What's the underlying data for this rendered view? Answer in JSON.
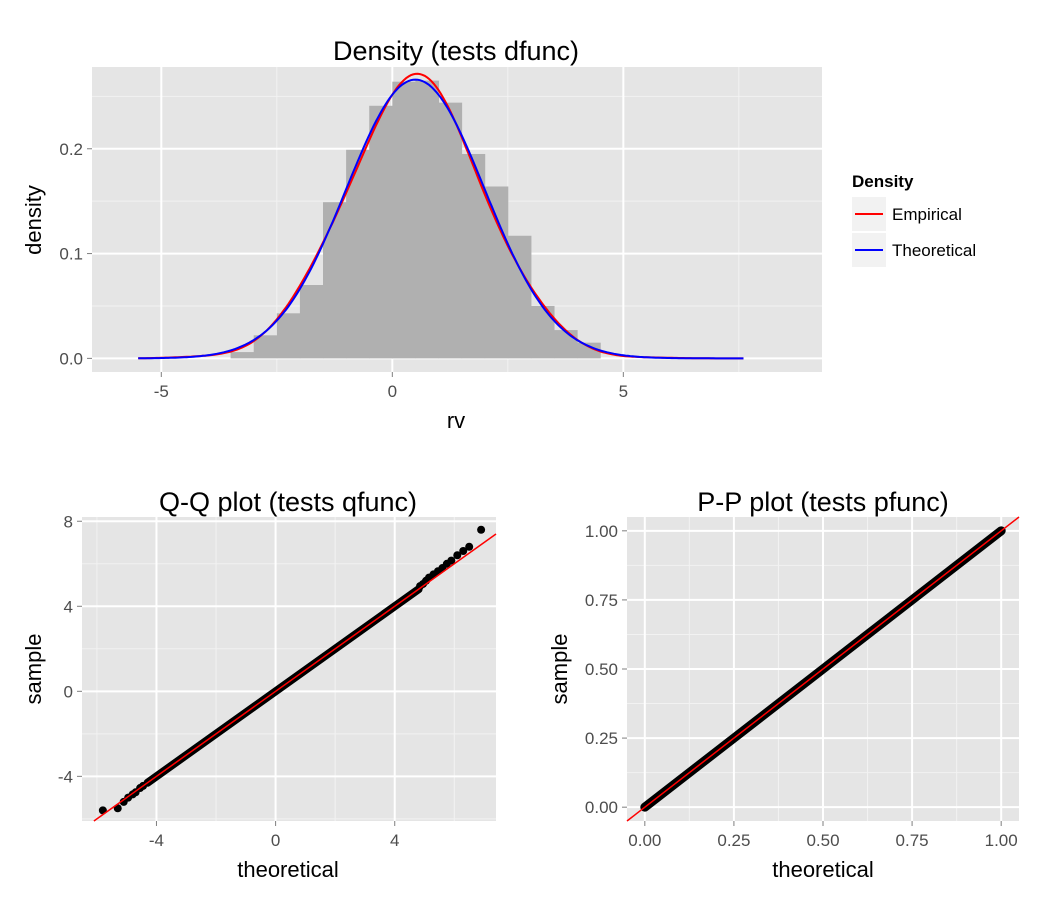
{
  "chart_data": [
    {
      "id": "density",
      "type": "histogram-density",
      "title": "Density (tests dfunc)",
      "xlabel": "rv",
      "ylabel": "density",
      "xlim": [
        -6.5,
        9.3
      ],
      "ylim": [
        -0.013,
        0.278
      ],
      "xticks": [
        -5,
        0,
        5
      ],
      "xtick_labels": [
        "-5",
        "0",
        "5"
      ],
      "yticks": [
        0.0,
        0.1,
        0.2
      ],
      "ytick_labels": [
        "0.0",
        "0.1",
        "0.2"
      ],
      "grid": true,
      "bar_color": "#b0b0b0",
      "histogram": {
        "bin_width": 0.5,
        "bin_starts": [
          -3.5,
          -3.0,
          -2.5,
          -2.0,
          -1.5,
          -1.0,
          -0.5,
          0.0,
          0.5,
          1.0,
          1.5,
          2.0,
          2.5,
          3.0,
          3.5,
          4.0
        ],
        "density": [
          0.006,
          0.022,
          0.043,
          0.07,
          0.149,
          0.199,
          0.241,
          0.264,
          0.265,
          0.244,
          0.195,
          0.164,
          0.117,
          0.05,
          0.027,
          0.015
        ]
      },
      "legend": {
        "title": "Density",
        "position": "right",
        "entries": [
          "Empirical",
          "Theoretical"
        ]
      },
      "series": [
        {
          "name": "Empirical",
          "color": "#ff0000",
          "dist": "empirical",
          "mean": 0.5,
          "sd": 1.5,
          "x_range": [
            -5.5,
            7.6
          ]
        },
        {
          "name": "Theoretical",
          "color": "#0000ff",
          "dist": "normal",
          "mean": 0.5,
          "sd": 1.5,
          "x_range": [
            -5.5,
            7.6
          ]
        }
      ]
    },
    {
      "id": "qq",
      "type": "scatter",
      "title": "Q-Q plot (tests qfunc)",
      "xlabel": "theoretical",
      "ylabel": "sample",
      "xlim": [
        -6.5,
        7.4
      ],
      "ylim": [
        -6.1,
        8.2
      ],
      "xticks": [
        -4,
        0,
        4
      ],
      "xtick_labels": [
        "-4",
        "0",
        "4"
      ],
      "yticks": [
        -4,
        0,
        4,
        8
      ],
      "ytick_labels": [
        "-4",
        "0",
        "4",
        "8"
      ],
      "grid": true,
      "reference_line": {
        "color": "#ff0000",
        "slope": 1,
        "intercept": 0
      },
      "point_color": "#000000",
      "dense_range": [
        -4.3,
        4.8
      ],
      "outliers": {
        "x": [
          -5.8,
          -5.3,
          -5.1,
          -4.95,
          -4.8,
          -4.7,
          -4.55,
          -4.45,
          4.85,
          4.95,
          5.05,
          5.15,
          5.3,
          5.45,
          5.6,
          5.75,
          5.9,
          6.1,
          6.3,
          6.5,
          6.9
        ],
        "y": [
          -5.6,
          -5.5,
          -5.2,
          -5.0,
          -4.85,
          -4.75,
          -4.55,
          -4.45,
          4.95,
          5.05,
          5.2,
          5.35,
          5.5,
          5.65,
          5.8,
          6.0,
          6.15,
          6.4,
          6.6,
          6.8,
          7.6
        ]
      }
    },
    {
      "id": "pp",
      "type": "scatter",
      "title": "P-P plot (tests pfunc)",
      "xlabel": "theoretical",
      "ylabel": "sample",
      "xlim": [
        -0.05,
        1.05
      ],
      "ylim": [
        -0.05,
        1.05
      ],
      "xticks": [
        0.0,
        0.25,
        0.5,
        0.75,
        1.0
      ],
      "xtick_labels": [
        "0.00",
        "0.25",
        "0.50",
        "0.75",
        "1.00"
      ],
      "yticks": [
        0.0,
        0.25,
        0.5,
        0.75,
        1.0
      ],
      "ytick_labels": [
        "0.00",
        "0.25",
        "0.50",
        "0.75",
        "1.00"
      ],
      "grid": true,
      "reference_line": {
        "color": "#ff0000",
        "slope": 1,
        "intercept": 0
      },
      "point_color": "#000000",
      "dense_range": [
        0.0,
        1.0
      ]
    }
  ]
}
